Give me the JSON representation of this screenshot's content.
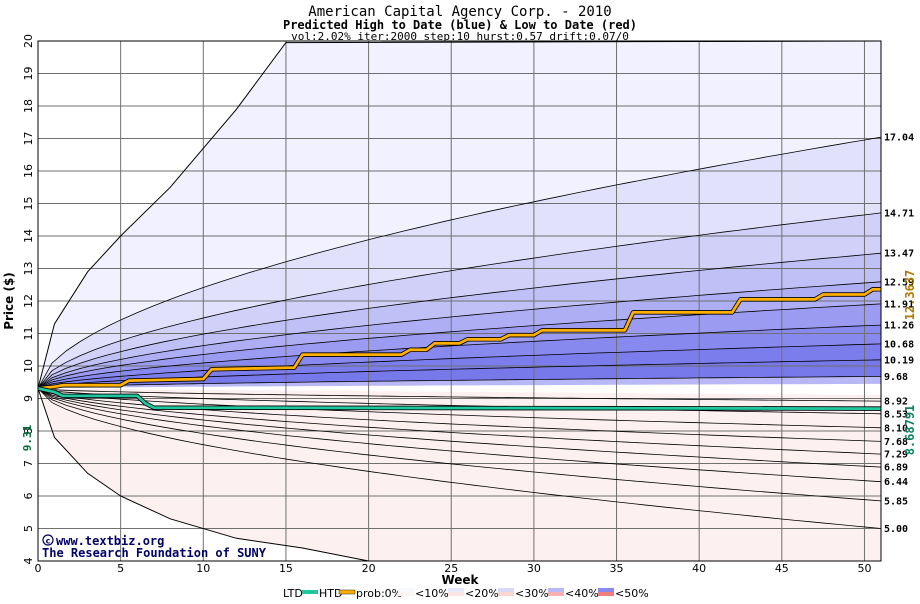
{
  "chart_data": {
    "type": "area",
    "title": "American Capital Agency Corp. - 2010",
    "subtitle": "Predicted High to Date (blue) &  Low to Date (red)",
    "params": "vol:2.02% iter:2000 step:10 hurst:0.57 drift:0.07/0",
    "xlabel": "Week",
    "ylabel": "Price ($)",
    "xlim": [
      0,
      51
    ],
    "ylim": [
      4,
      20
    ],
    "x_ticks": [
      "0",
      "5",
      "10",
      "15",
      "20",
      "25",
      "30",
      "35",
      "40",
      "45",
      "50"
    ],
    "y_ticks": [
      "4",
      "5",
      "6",
      "7",
      "8",
      "9",
      "10",
      "11",
      "12",
      "13",
      "14",
      "15",
      "16",
      "17",
      "18",
      "19",
      "20"
    ],
    "start_price": 9.31,
    "start_label": "9.31",
    "high_bands": [
      {
        "label": "17.04",
        "end": 17.04
      },
      {
        "label": "14.71",
        "end": 14.71
      },
      {
        "label": "13.47",
        "end": 13.47
      },
      {
        "label": "12.59",
        "end": 12.59
      },
      {
        "label": "11.91",
        "end": 11.91
      },
      {
        "label": "11.26",
        "end": 11.26
      },
      {
        "label": "10.68",
        "end": 10.68
      },
      {
        "label": "10.19",
        "end": 10.19
      },
      {
        "label": "9.68",
        "end": 9.68
      }
    ],
    "low_bands": [
      {
        "label": "8.92",
        "end": 8.92
      },
      {
        "label": "8.53",
        "end": 8.53
      },
      {
        "label": "8.10",
        "end": 8.1
      },
      {
        "label": "7.68",
        "end": 7.68
      },
      {
        "label": "7.29",
        "end": 7.29
      },
      {
        "label": "6.89",
        "end": 6.89
      },
      {
        "label": "6.44",
        "end": 6.44
      },
      {
        "label": "5.85",
        "end": 5.85
      },
      {
        "label": "5.00",
        "end": 5.0
      }
    ],
    "outer_high": {
      "x": [
        0,
        1,
        3,
        5,
        8,
        12,
        15,
        51
      ],
      "y": [
        9.31,
        11.3,
        12.9,
        14.0,
        15.5,
        17.9,
        19.95,
        20
      ]
    },
    "outer_low": {
      "x": [
        0,
        1,
        3,
        5,
        8,
        12,
        16,
        20
      ],
      "y": [
        9.31,
        7.8,
        6.7,
        6.0,
        5.3,
        4.7,
        4.4,
        4.0
      ]
    },
    "series": [
      {
        "name": "HTD",
        "color": "#ffb000",
        "end_label": "12.3637",
        "x": [
          0,
          1,
          1.5,
          5,
          5.5,
          10,
          10.5,
          15.5,
          16,
          22,
          22.5,
          23.5,
          24,
          25.5,
          26,
          28,
          28.5,
          30,
          30.5,
          35.5,
          36,
          42,
          42.5,
          47,
          47.5,
          50,
          50.5,
          51
        ],
        "y": [
          9.31,
          9.36,
          9.41,
          9.41,
          9.55,
          9.6,
          9.9,
          9.95,
          10.35,
          10.35,
          10.5,
          10.5,
          10.7,
          10.7,
          10.82,
          10.82,
          10.95,
          10.95,
          11.1,
          11.1,
          11.65,
          11.65,
          12.05,
          12.05,
          12.2,
          12.2,
          12.36,
          12.36
        ]
      },
      {
        "name": "LTD",
        "color": "#20c8a0",
        "end_label": "8.68791",
        "x": [
          0,
          1,
          1.5,
          6,
          6.5,
          7,
          51
        ],
        "y": [
          9.31,
          9.2,
          9.08,
          9.08,
          8.85,
          8.72,
          8.69
        ]
      }
    ],
    "grid": true,
    "legend_position": "bottom",
    "legend": {
      "ltd": "LTD",
      "htd": "HTD",
      "prob": "prob:0%",
      "bins": [
        "<10%",
        "<20%",
        "<30%",
        "<40%",
        "<50%"
      ]
    }
  },
  "credits": {
    "site": "www.textbiz.org",
    "org": "The Research Foundation of SUNY"
  },
  "colors": {
    "grid": "#707070",
    "blue": [
      "#f1f1ff",
      "#e1e1fb",
      "#d0d0f8",
      "#bfc0f6",
      "#aeaef4",
      "#9b9cf1",
      "#8889ee",
      "#7c7dec",
      "#7778ea",
      "#b8b8f6"
    ],
    "red": [
      "#fdf0f0",
      "#fce0e0",
      "#fad0d0",
      "#f8bfbf",
      "#f6aeae",
      "#f49c9c",
      "#f28a8a",
      "#f07c7c",
      "#f07474",
      "#f4b0b0"
    ]
  }
}
